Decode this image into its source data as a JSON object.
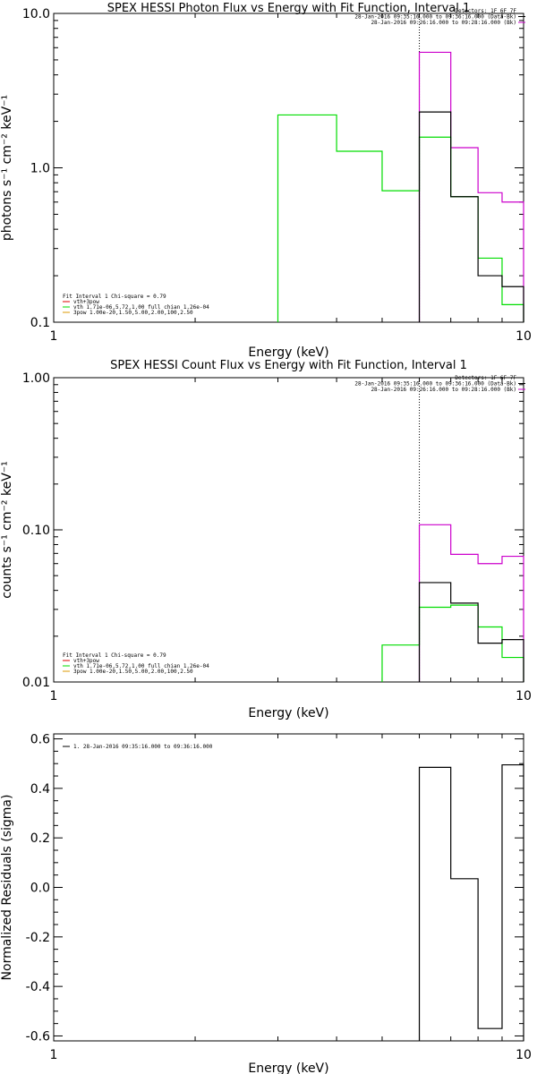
{
  "colors": {
    "black": "#000000",
    "green": "#00dd00",
    "magenta": "#cc00cc",
    "red": "#dd0000",
    "orange": "#dd9900"
  },
  "chart_data": [
    {
      "type": "line",
      "title": "SPEX HESSI Photon Flux vs Energy with Fit Function, Interval 1",
      "xlabel": "Energy (keV)",
      "ylabel": "photons s⁻¹ cm⁻² keV⁻¹",
      "xscale": "log",
      "yscale": "log",
      "xlim": [
        1,
        10
      ],
      "ylim": [
        0.1,
        10
      ],
      "xticks": [
        "1",
        "10"
      ],
      "yticks": [
        {
          "v": 0.1,
          "label": "0.1"
        },
        {
          "v": 1,
          "label": "1.0"
        },
        {
          "v": 10,
          "label": "10.0"
        }
      ],
      "vline": 6,
      "legend_right": [
        "Detectors: 1F 6F 7F",
        "28-Jan-2016 09:35:16.000 to 09:36:16.000 (Data-Bk)",
        "28-Jan-2016 09:26:16.000 to 09:28:16.000 (Bk)"
      ],
      "legend_left": [
        "Fit Interval 1    Chi-square = 0.79",
        "vth+3pow",
        "vth 1.71e-06,5.72,1.00  full chian 1.26e-04",
        "3pow 1.00e-20,1.50,5.00,2.00,100,2.50"
      ],
      "series": [
        {
          "name": "Data-Bk",
          "color": "black",
          "edges": [
            6,
            7,
            8,
            9,
            10
          ],
          "values": [
            2.3,
            0.65,
            0.2,
            0.17
          ]
        },
        {
          "name": "Bk",
          "color": "magenta",
          "edges": [
            6,
            7,
            8,
            9,
            10
          ],
          "values": [
            5.6,
            1.35,
            0.69,
            0.6
          ]
        },
        {
          "name": "vth",
          "color": "green",
          "edges": [
            3,
            4,
            5,
            6,
            7,
            8,
            9,
            10
          ],
          "values": [
            2.2,
            1.28,
            0.71,
            1.58,
            0.65,
            0.26,
            0.13
          ]
        }
      ]
    },
    {
      "type": "line",
      "title": "SPEX HESSI Count Flux vs Energy with Fit Function, Interval 1",
      "xlabel": "Energy (keV)",
      "ylabel": "counts s⁻¹ cm⁻² keV⁻¹",
      "xscale": "log",
      "yscale": "log",
      "xlim": [
        1,
        10
      ],
      "ylim": [
        0.01,
        1
      ],
      "xticks": [
        "1",
        "10"
      ],
      "yticks": [
        {
          "v": 0.01,
          "label": "0.01"
        },
        {
          "v": 0.1,
          "label": "0.10"
        },
        {
          "v": 1,
          "label": "1.00"
        }
      ],
      "vline": 6,
      "legend_right": [
        "Detectors: 1F 6F 7F",
        "28-Jan-2016 09:35:16.000 to 09:36:16.000 (Data-Bk)",
        "28-Jan-2016 09:26:16.000 to 09:28:16.000 (Bk)"
      ],
      "legend_left": [
        "Fit Interval 1    Chi-square = 0.79",
        "vth+3pow",
        "vth 1.71e-06,5.72,1.00  full chian 1.26e-04",
        "3pow 1.00e-20,1.50,5.00,2.00,100,2.50"
      ],
      "series": [
        {
          "name": "Data-Bk",
          "color": "black",
          "edges": [
            6,
            7,
            8,
            9,
            10
          ],
          "values": [
            0.045,
            0.033,
            0.018,
            0.019
          ]
        },
        {
          "name": "Bk",
          "color": "magenta",
          "edges": [
            6,
            7,
            8,
            9,
            10
          ],
          "values": [
            0.108,
            0.069,
            0.06,
            0.067
          ]
        },
        {
          "name": "vth",
          "color": "green",
          "edges": [
            5,
            6,
            7,
            8,
            9,
            10
          ],
          "values": [
            0.0175,
            0.031,
            0.032,
            0.023,
            0.0145
          ]
        }
      ]
    },
    {
      "type": "line",
      "title": "",
      "xlabel": "Energy (keV)",
      "ylabel": "Normalized Residuals (sigma)",
      "xscale": "log",
      "yscale": "linear",
      "xlim": [
        1,
        10
      ],
      "ylim": [
        -0.62,
        0.62
      ],
      "xticks": [
        "1",
        "10"
      ],
      "yticks": [
        {
          "v": 0.6,
          "label": "0.6"
        },
        {
          "v": 0.4,
          "label": "0.4"
        },
        {
          "v": 0.2,
          "label": "0.2"
        },
        {
          "v": 0.0,
          "label": "0.0"
        },
        {
          "v": -0.2,
          "label": "-0.2"
        },
        {
          "v": -0.4,
          "label": "-0.4"
        },
        {
          "v": -0.6,
          "label": "-0.6"
        }
      ],
      "legend_left": [
        "1. 28-Jan-2016 09:35:16.000 to 09:36:16.000"
      ],
      "series": [
        {
          "name": "residuals",
          "color": "black",
          "edges": [
            6,
            7,
            8,
            9,
            10
          ],
          "values": [
            0.485,
            0.035,
            -0.57,
            0.495
          ]
        }
      ]
    }
  ]
}
